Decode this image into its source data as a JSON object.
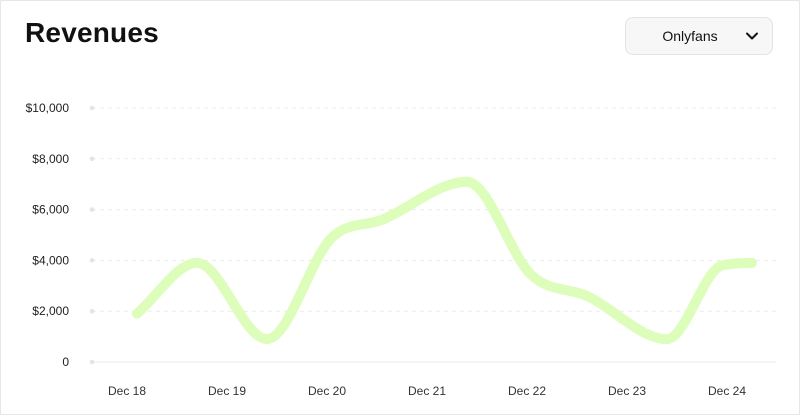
{
  "header": {
    "title": "Revenues",
    "filter": {
      "selected": "Onlyfans",
      "icon": "chevron-down-icon"
    }
  },
  "chart_data": {
    "type": "line",
    "title": "Revenues",
    "xlabel": "",
    "ylabel": "",
    "categories": [
      "Dec 18",
      "Dec 19",
      "Dec 20",
      "Dec 21",
      "Dec 22",
      "Dec 23",
      "Dec 24"
    ],
    "yticks": [
      {
        "value": 10000,
        "label": "$10,000"
      },
      {
        "value": 8000,
        "label": "$8,000"
      },
      {
        "value": 6000,
        "label": "$6,000"
      },
      {
        "value": 4000,
        "label": "$4,000"
      },
      {
        "value": 2000,
        "label": "$2,000"
      },
      {
        "value": 0,
        "label": "0"
      }
    ],
    "ylim": [
      0,
      10000
    ],
    "grid": true,
    "series": [
      {
        "color": "#ddfdbb",
        "points": [
          {
            "x": 0.1,
            "y": 1900
          },
          {
            "x": 0.7,
            "y": 3900
          },
          {
            "x": 1.4,
            "y": 900
          },
          {
            "x": 2.05,
            "y": 4900
          },
          {
            "x": 2.55,
            "y": 5600
          },
          {
            "x": 3.4,
            "y": 7100
          },
          {
            "x": 4.05,
            "y": 3400
          },
          {
            "x": 4.6,
            "y": 2600
          },
          {
            "x": 5.4,
            "y": 900
          },
          {
            "x": 5.95,
            "y": 3800
          },
          {
            "x": 6.25,
            "y": 3900
          }
        ]
      }
    ]
  }
}
